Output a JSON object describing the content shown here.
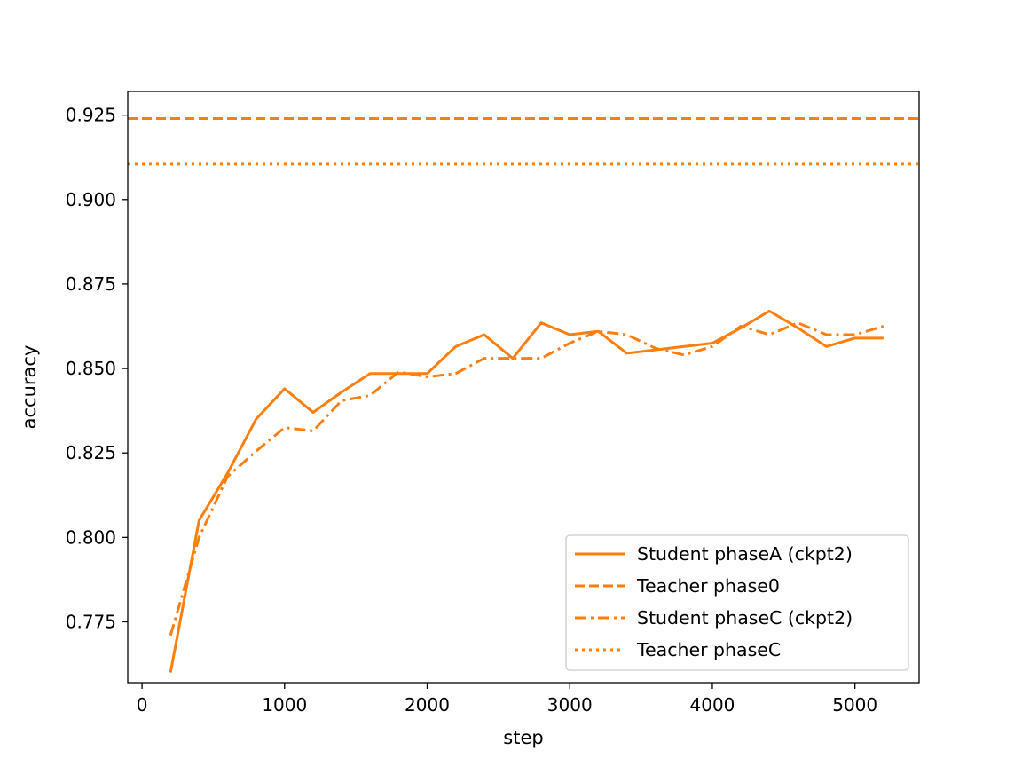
{
  "chart_data": {
    "type": "line",
    "title": "",
    "xlabel": "step",
    "ylabel": "accuracy",
    "xlim": [
      -100,
      5450
    ],
    "ylim": [
      0.757,
      0.932
    ],
    "xticks": [
      0,
      1000,
      2000,
      3000,
      4000,
      5000
    ],
    "xtick_labels": [
      "0",
      "1000",
      "2000",
      "3000",
      "4000",
      "5000"
    ],
    "yticks": [
      0.775,
      0.8,
      0.825,
      0.85,
      0.875,
      0.9,
      0.925
    ],
    "ytick_labels": [
      "0.775",
      "0.800",
      "0.825",
      "0.850",
      "0.875",
      "0.900",
      "0.925"
    ],
    "grid": false,
    "legend_placement": "lower-right",
    "series": [
      {
        "name": "Student phaseA (ckpt2)",
        "style": "solid",
        "color": "#ff7f0e",
        "x": [
          200,
          400,
          600,
          800,
          1000,
          1200,
          1400,
          1600,
          1800,
          2000,
          2200,
          2400,
          2600,
          2800,
          3000,
          3200,
          3400,
          3600,
          3800,
          4000,
          4200,
          4400,
          4600,
          4800,
          5000,
          5200
        ],
        "y": [
          0.76,
          0.805,
          0.819,
          0.835,
          0.844,
          0.837,
          0.843,
          0.8485,
          0.8485,
          0.8485,
          0.8565,
          0.86,
          0.853,
          0.8635,
          0.86,
          0.861,
          0.8545,
          0.8555,
          0.8565,
          0.8575,
          0.862,
          0.867,
          0.862,
          0.8565,
          0.859,
          0.859
        ]
      },
      {
        "name": "Teacher phase0",
        "style": "dashed",
        "color": "#ff7f0e",
        "y_const": 0.924
      },
      {
        "name": "Student phaseC (ckpt2)",
        "style": "dashdot",
        "color": "#ff7f0e",
        "x": [
          200,
          400,
          600,
          800,
          1000,
          1200,
          1400,
          1600,
          1800,
          2000,
          2200,
          2400,
          2600,
          2800,
          3000,
          3200,
          3400,
          3600,
          3800,
          4000,
          4200,
          4400,
          4600,
          4800,
          5000,
          5200
        ],
        "y": [
          0.771,
          0.8,
          0.818,
          0.8255,
          0.8325,
          0.8315,
          0.8405,
          0.842,
          0.849,
          0.8475,
          0.8485,
          0.853,
          0.853,
          0.853,
          0.8575,
          0.861,
          0.86,
          0.856,
          0.854,
          0.8565,
          0.8625,
          0.86,
          0.8635,
          0.86,
          0.86,
          0.8625
        ]
      },
      {
        "name": "Teacher phaseC",
        "style": "dotted",
        "color": "#ff7f0e",
        "y_const": 0.9105
      }
    ]
  }
}
